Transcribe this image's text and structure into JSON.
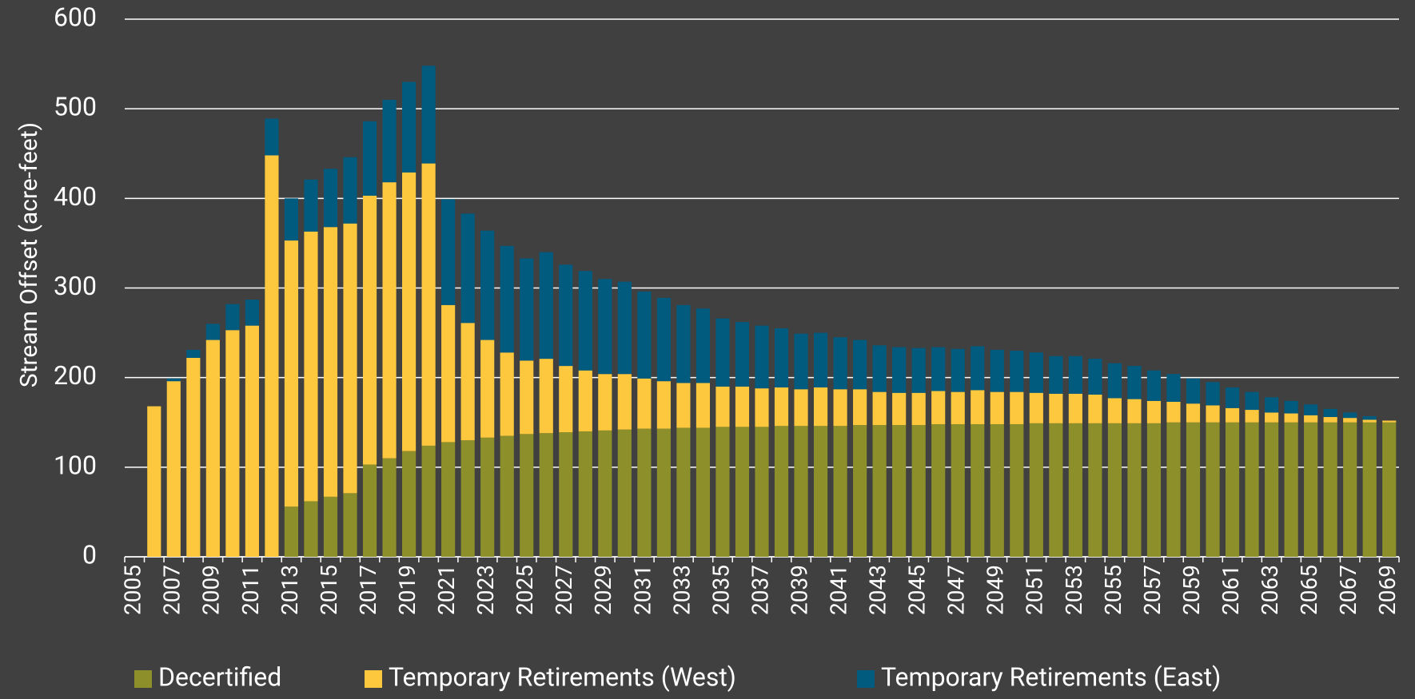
{
  "chart_data": {
    "type": "stacked_bar",
    "y_label": "Stream Offset (acre-feet)",
    "categories": [
      "2005",
      null,
      "2007",
      null,
      "2009",
      null,
      "2011",
      null,
      "2013",
      null,
      "2015",
      null,
      "2017",
      null,
      "2019",
      null,
      "2021",
      null,
      "2023",
      null,
      "2025",
      null,
      "2027",
      null,
      "2029",
      null,
      "2031",
      null,
      "2033",
      null,
      "2035",
      null,
      "2037",
      null,
      "2039",
      null,
      "2041",
      null,
      "2043",
      null,
      "2045",
      null,
      "2047",
      null,
      "2049",
      null,
      "2051",
      null,
      "2053",
      null,
      "2055",
      null,
      "2057",
      null,
      "2059",
      null,
      "2061",
      null,
      "2063",
      null,
      "2065",
      null,
      "2067",
      null,
      "2069"
    ],
    "series": [
      {
        "name": "Decertified",
        "color": "#8c8f2a",
        "values": [
          0,
          0,
          0,
          0,
          0,
          0,
          0,
          0,
          56,
          62,
          67,
          71,
          103,
          110,
          118,
          124,
          128,
          130,
          133,
          135,
          137,
          138,
          139,
          140,
          141,
          142,
          143,
          143,
          144,
          144,
          145,
          145,
          145,
          146,
          146,
          146,
          146,
          147,
          147,
          147,
          147,
          148,
          148,
          148,
          148,
          148,
          149,
          149,
          149,
          149,
          149,
          149,
          149,
          150,
          150,
          150,
          150,
          150,
          150,
          150,
          150,
          150,
          150,
          150,
          150
        ]
      },
      {
        "name": "Temporary Retirements (West)",
        "color": "#fdc73e",
        "values": [
          0,
          168,
          196,
          222,
          242,
          253,
          258,
          448,
          297,
          301,
          301,
          301,
          300,
          308,
          311,
          315,
          153,
          131,
          109,
          93,
          82,
          83,
          74,
          68,
          63,
          62,
          56,
          53,
          50,
          50,
          45,
          45,
          43,
          43,
          41,
          43,
          41,
          40,
          37,
          36,
          36,
          37,
          36,
          38,
          36,
          36,
          34,
          33,
          33,
          32,
          28,
          27,
          25,
          23,
          21,
          19,
          16,
          14,
          11,
          10,
          8,
          6,
          5,
          3,
          2
        ]
      },
      {
        "name": "Temporary Retirements (East)",
        "color": "#005b7f",
        "values": [
          0,
          0,
          3,
          9,
          18,
          29,
          29,
          41,
          47,
          58,
          65,
          74,
          83,
          92,
          101,
          109,
          118,
          122,
          122,
          119,
          114,
          119,
          113,
          111,
          106,
          103,
          97,
          93,
          87,
          83,
          76,
          72,
          70,
          66,
          62,
          61,
          58,
          55,
          52,
          51,
          50,
          49,
          48,
          49,
          47,
          46,
          45,
          42,
          42,
          40,
          39,
          37,
          34,
          31,
          28,
          26,
          23,
          20,
          17,
          14,
          12,
          9,
          6,
          4,
          0
        ]
      }
    ],
    "ylim": [
      0,
      600
    ],
    "yticks": [
      0,
      100,
      200,
      300,
      400,
      500,
      600
    ],
    "grid": true,
    "legend": "bottom"
  }
}
